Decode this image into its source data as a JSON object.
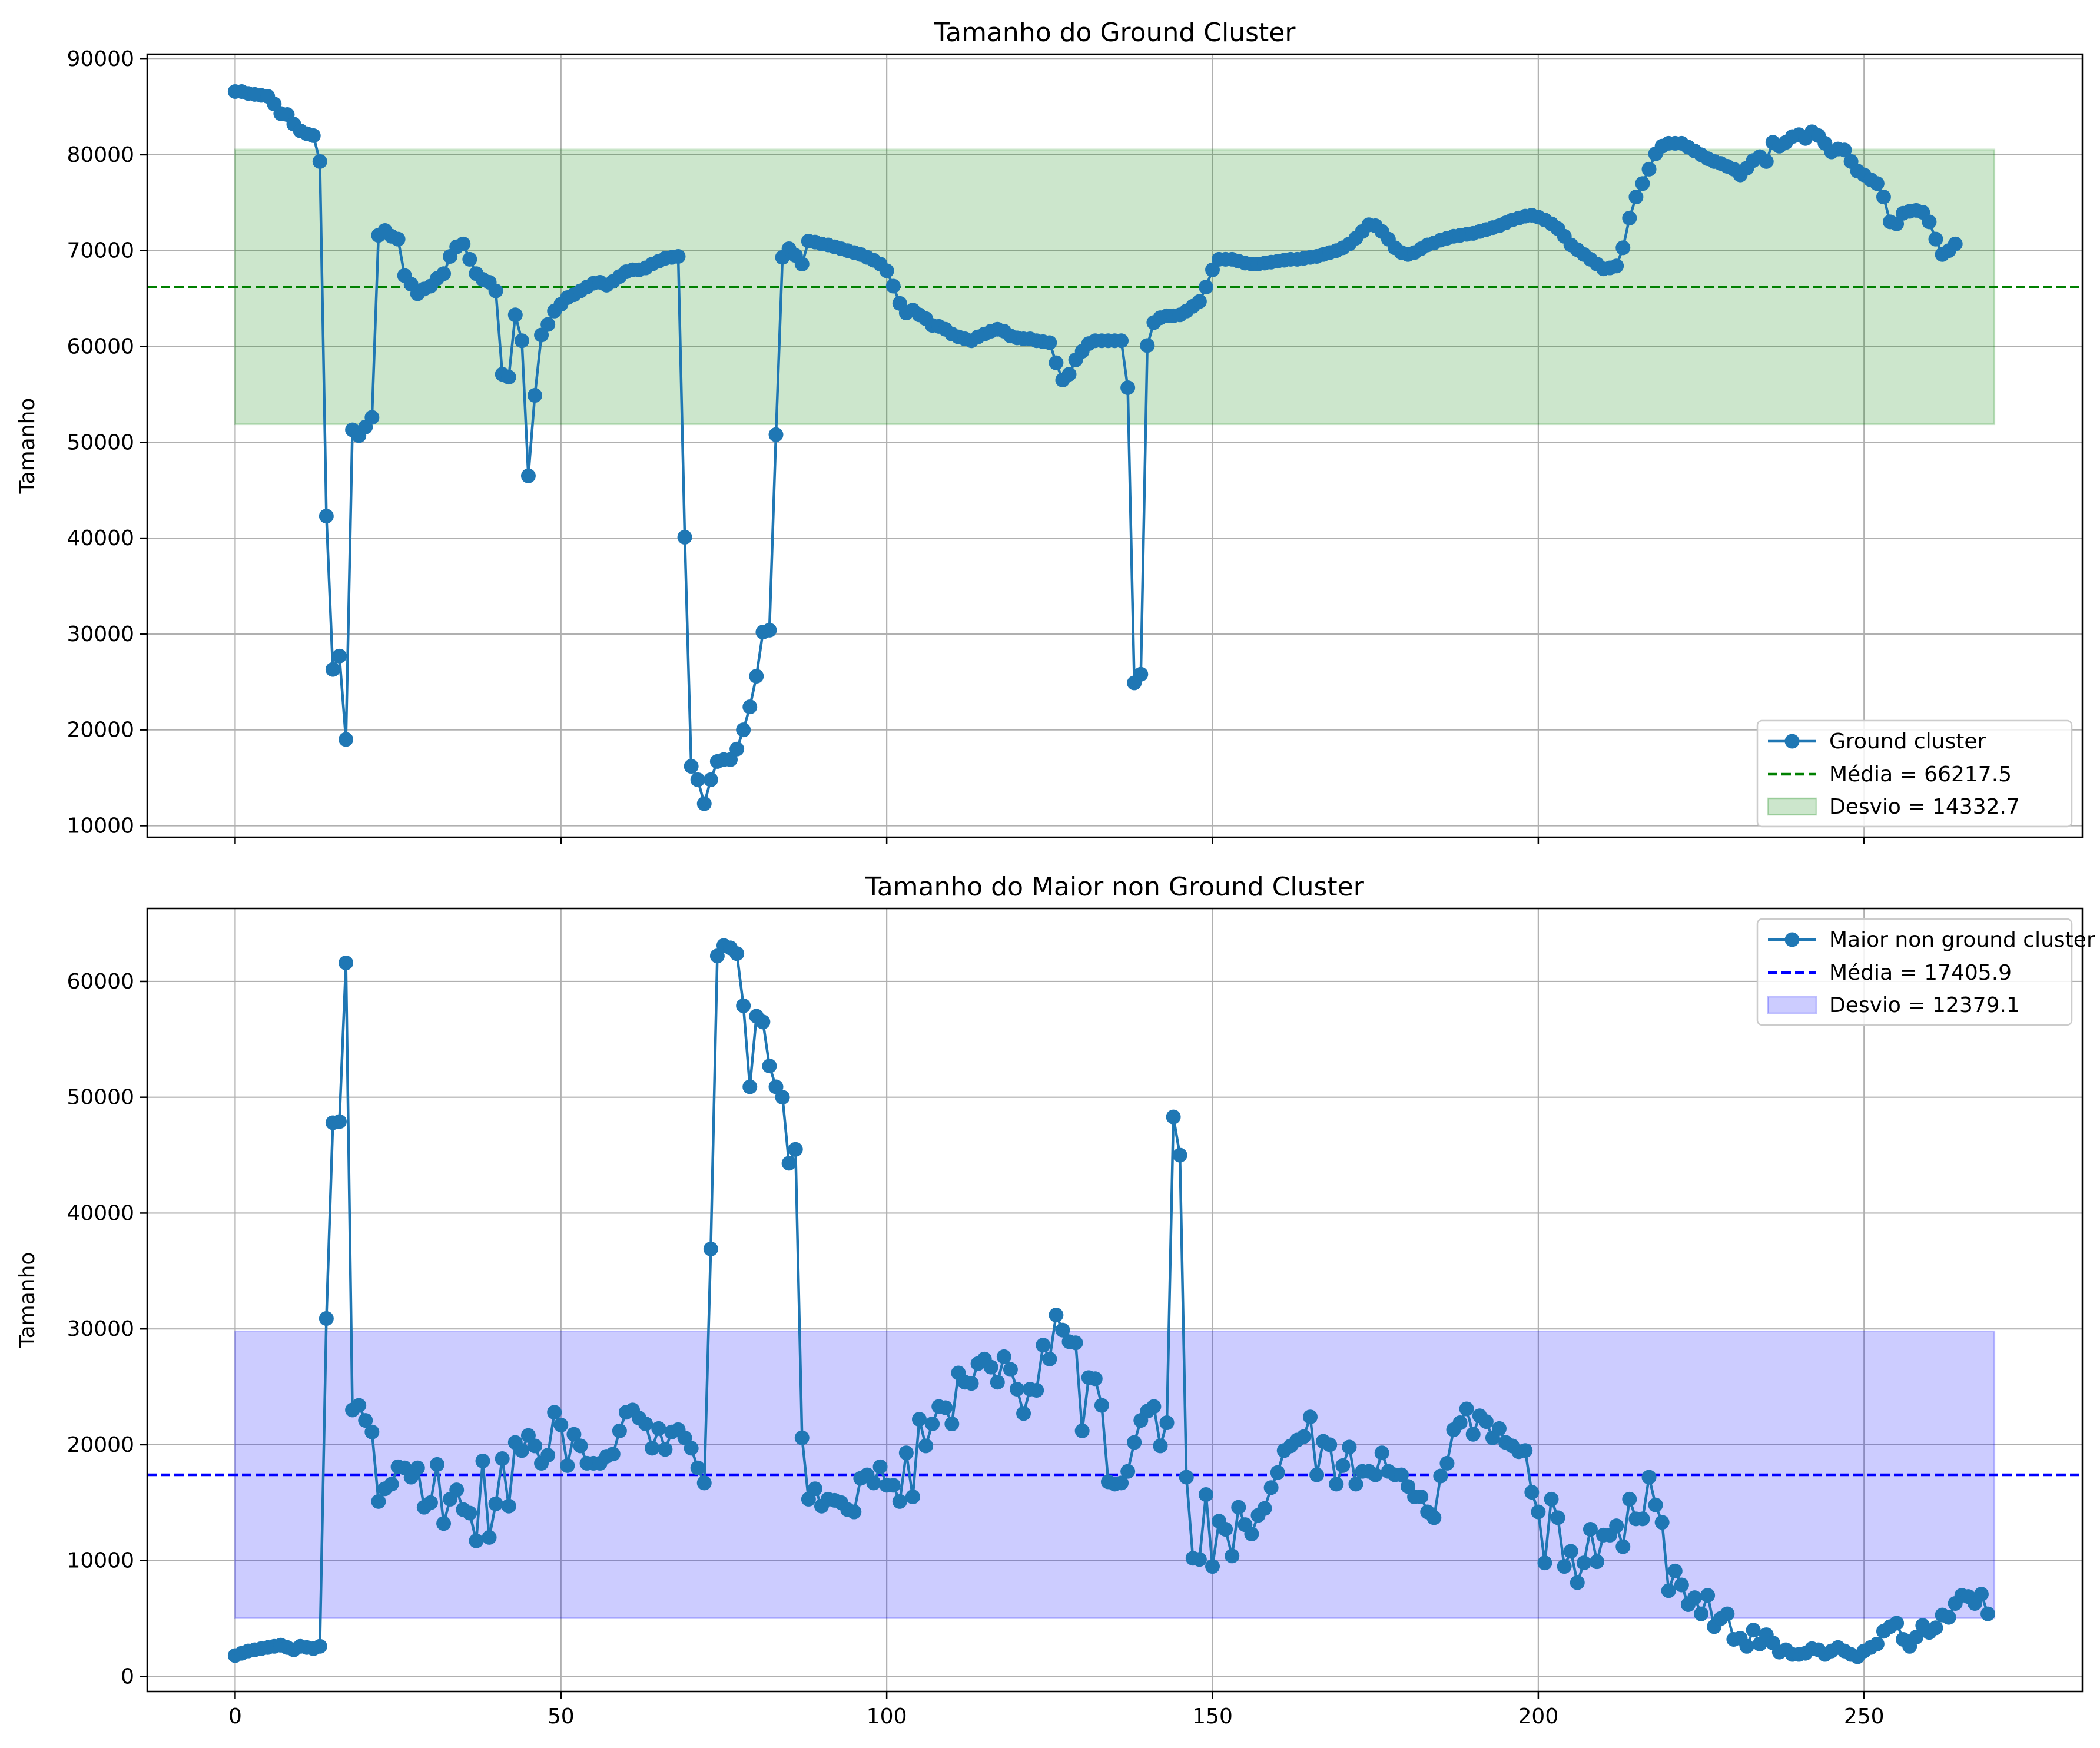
{
  "chart_data": [
    {
      "type": "line",
      "title": "Tamanho do Ground Cluster",
      "xlabel": "",
      "ylabel": "Tamanho",
      "xlim": [
        -13.5,
        283.5
      ],
      "ylim": [
        8800,
        90500
      ],
      "x_ticks": [
        0,
        50,
        100,
        150,
        200,
        250
      ],
      "x_tick_labels": [],
      "y_ticks": [
        10000,
        20000,
        30000,
        40000,
        50000,
        60000,
        70000,
        80000,
        90000
      ],
      "y_tick_labels": [
        "10000",
        "20000",
        "30000",
        "40000",
        "50000",
        "60000",
        "70000",
        "80000",
        "90000"
      ],
      "grid": true,
      "legend_position": "lower-right",
      "line_color": "#1f77b4",
      "mean_color": "#008000",
      "band_color": "#008000",
      "mean": 66217.5,
      "band": [
        51884.8,
        80550.2
      ],
      "band_x": [
        0,
        270
      ],
      "legend": [
        "Ground cluster",
        "Média = 66217.5",
        "Desvio = 14332.7"
      ],
      "series": [
        {
          "name": "Ground cluster",
          "values": [
            86600,
            86600,
            86400,
            86300,
            86200,
            86100,
            85300,
            84300,
            84200,
            83200,
            82500,
            82200,
            82000,
            79300,
            42300,
            26300,
            27700,
            19000,
            51300,
            50700,
            51600,
            52600,
            71600,
            72100,
            71500,
            71200,
            67400,
            66500,
            65500,
            66000,
            66300,
            67100,
            67600,
            69400,
            70400,
            70700,
            69100,
            67600,
            67000,
            66700,
            65800,
            57100,
            56800,
            63300,
            60600,
            46500,
            54900,
            61200,
            62300,
            63700,
            64400,
            65100,
            65400,
            65800,
            66200,
            66600,
            66700,
            66400,
            66800,
            67300,
            67800,
            68000,
            68000,
            68200,
            68600,
            68900,
            69200,
            69300,
            69400,
            40100,
            16200,
            14800,
            12300,
            14800,
            16700,
            16900,
            16900,
            18000,
            20000,
            22400,
            25600,
            30200,
            30400,
            50800,
            69300,
            70200,
            69500,
            68600,
            71000,
            70900,
            70700,
            70600,
            70400,
            70200,
            70000,
            69800,
            69600,
            69300,
            69000,
            68600,
            67900,
            66300,
            64500,
            63500,
            63800,
            63300,
            62900,
            62200,
            62100,
            61800,
            61300,
            61000,
            60800,
            60600,
            61000,
            61300,
            61600,
            61800,
            61600,
            61100,
            60900,
            60800,
            60800,
            60600,
            60500,
            60400,
            58300,
            56500,
            57100,
            58600,
            59500,
            60300,
            60600,
            60600,
            60600,
            60600,
            60600,
            55700,
            24900,
            25800,
            60100,
            62500,
            63000,
            63200,
            63200,
            63300,
            63700,
            64200,
            64700,
            66200,
            68000,
            69100,
            69100,
            69100,
            68900,
            68700,
            68600,
            68600,
            68700,
            68800,
            68900,
            69000,
            69100,
            69100,
            69200,
            69300,
            69400,
            69600,
            69800,
            70000,
            70300,
            70700,
            71300,
            72000,
            72700,
            72600,
            72000,
            71200,
            70300,
            69800,
            69600,
            69800,
            70200,
            70600,
            70800,
            71100,
            71300,
            71500,
            71600,
            71700,
            71800,
            72000,
            72200,
            72400,
            72600,
            72900,
            73200,
            73400,
            73600,
            73700,
            73500,
            73200,
            72800,
            72300,
            71500,
            70600,
            70100,
            69600,
            69100,
            68600,
            68100,
            68200,
            68400,
            70300,
            73400,
            75600,
            77000,
            78500,
            80100,
            80900,
            81200,
            81200,
            81200,
            80800,
            80400,
            80000,
            79600,
            79300,
            79100,
            78800,
            78500,
            77900,
            78600,
            79400,
            79800,
            79300,
            81300,
            80900,
            81300,
            81900,
            82100,
            81700,
            82400,
            82000,
            81200,
            80300,
            80600,
            80500,
            79300,
            78300,
            77900,
            77400,
            77000,
            75600,
            73000,
            72800,
            73900,
            74100,
            74200,
            74000,
            73000,
            71200,
            69600,
            70000,
            70700
          ]
        }
      ]
    },
    {
      "type": "line",
      "title": "Tamanho do Maior non Ground Cluster",
      "xlabel": "",
      "ylabel": "Tamanho",
      "xlim": [
        -13.5,
        283.5
      ],
      "ylim": [
        -1300,
        66300
      ],
      "x_ticks": [
        0,
        50,
        100,
        150,
        200,
        250
      ],
      "x_tick_labels": [
        "0",
        "50",
        "100",
        "150",
        "200",
        "250"
      ],
      "y_ticks": [
        0,
        10000,
        20000,
        30000,
        40000,
        50000,
        60000
      ],
      "y_tick_labels": [
        "0",
        "10000",
        "20000",
        "30000",
        "40000",
        "50000",
        "60000"
      ],
      "grid": true,
      "legend_position": "upper-right",
      "line_color": "#1f77b4",
      "mean_color": "#0000ff",
      "band_color": "#0000ff",
      "mean": 17405.9,
      "band": [
        5026.8,
        29785.0
      ],
      "band_x": [
        0,
        270
      ],
      "legend": [
        "Maior non ground cluster",
        "Média = 17405.9",
        "Desvio = 12379.1"
      ],
      "series": [
        {
          "name": "Maior non ground cluster",
          "values": [
            1800,
            2000,
            2200,
            2300,
            2400,
            2500,
            2600,
            2700,
            2500,
            2300,
            2600,
            2500,
            2400,
            2600,
            30900,
            47800,
            47900,
            61600,
            23000,
            23400,
            22100,
            21100,
            15100,
            16200,
            16600,
            18100,
            18000,
            17200,
            18000,
            14600,
            15000,
            18300,
            13200,
            15300,
            16100,
            14400,
            14100,
            11700,
            18600,
            12000,
            14900,
            18800,
            14700,
            20200,
            19500,
            20800,
            19900,
            18400,
            19100,
            22800,
            21700,
            18200,
            20900,
            19900,
            18400,
            18400,
            18400,
            19000,
            19200,
            21200,
            22800,
            23000,
            22300,
            21800,
            19700,
            21400,
            19600,
            21100,
            21300,
            20600,
            19700,
            18000,
            16700,
            36900,
            62200,
            63100,
            62900,
            62400,
            57900,
            50900,
            57000,
            56500,
            52700,
            50900,
            50000,
            44300,
            45500,
            20600,
            15300,
            16200,
            14700,
            15300,
            15200,
            15000,
            14400,
            14200,
            17100,
            17400,
            16700,
            18100,
            16500,
            16500,
            15100,
            19300,
            15500,
            22200,
            19900,
            21800,
            23300,
            23200,
            21800,
            26200,
            25400,
            25300,
            27000,
            27400,
            26700,
            25400,
            27600,
            26500,
            24800,
            22700,
            24800,
            24700,
            28600,
            27400,
            31200,
            29900,
            28900,
            28800,
            21200,
            25800,
            25700,
            23400,
            16800,
            16600,
            16700,
            17700,
            20200,
            22100,
            22900,
            23300,
            19900,
            21900,
            48300,
            45000,
            17200,
            10200,
            10100,
            15700,
            9500,
            13400,
            12700,
            10400,
            14600,
            13100,
            12300,
            13900,
            14500,
            16300,
            17600,
            19500,
            19900,
            20400,
            20700,
            22400,
            17400,
            20300,
            20000,
            16600,
            18200,
            19800,
            16600,
            17700,
            17700,
            17400,
            19300,
            17700,
            17400,
            17400,
            16400,
            15500,
            15500,
            14200,
            13700,
            17300,
            18400,
            21300,
            21900,
            23100,
            20900,
            22500,
            22000,
            20600,
            21400,
            20200,
            19900,
            19400,
            19500,
            15900,
            14200,
            9800,
            15300,
            13700,
            9500,
            10800,
            8100,
            9800,
            12700,
            9900,
            12200,
            12200,
            13000,
            11200,
            15300,
            13600,
            13600,
            17200,
            14800,
            13300,
            7400,
            9100,
            7900,
            6200,
            6800,
            5400,
            7000,
            4300,
            5000,
            5400,
            3200,
            3300,
            2600,
            4000,
            2800,
            3600,
            2900,
            2100,
            2300,
            1900,
            1900,
            2000,
            2400,
            2300,
            1900,
            2200,
            2500,
            2200,
            1900,
            1700,
            2200,
            2500,
            2800,
            3900,
            4300,
            4600,
            3200,
            2600,
            3400,
            4400,
            3800,
            4200,
            5300,
            5100,
            6300,
            7000,
            6900,
            6300,
            7100,
            5400
          ]
        }
      ]
    }
  ]
}
